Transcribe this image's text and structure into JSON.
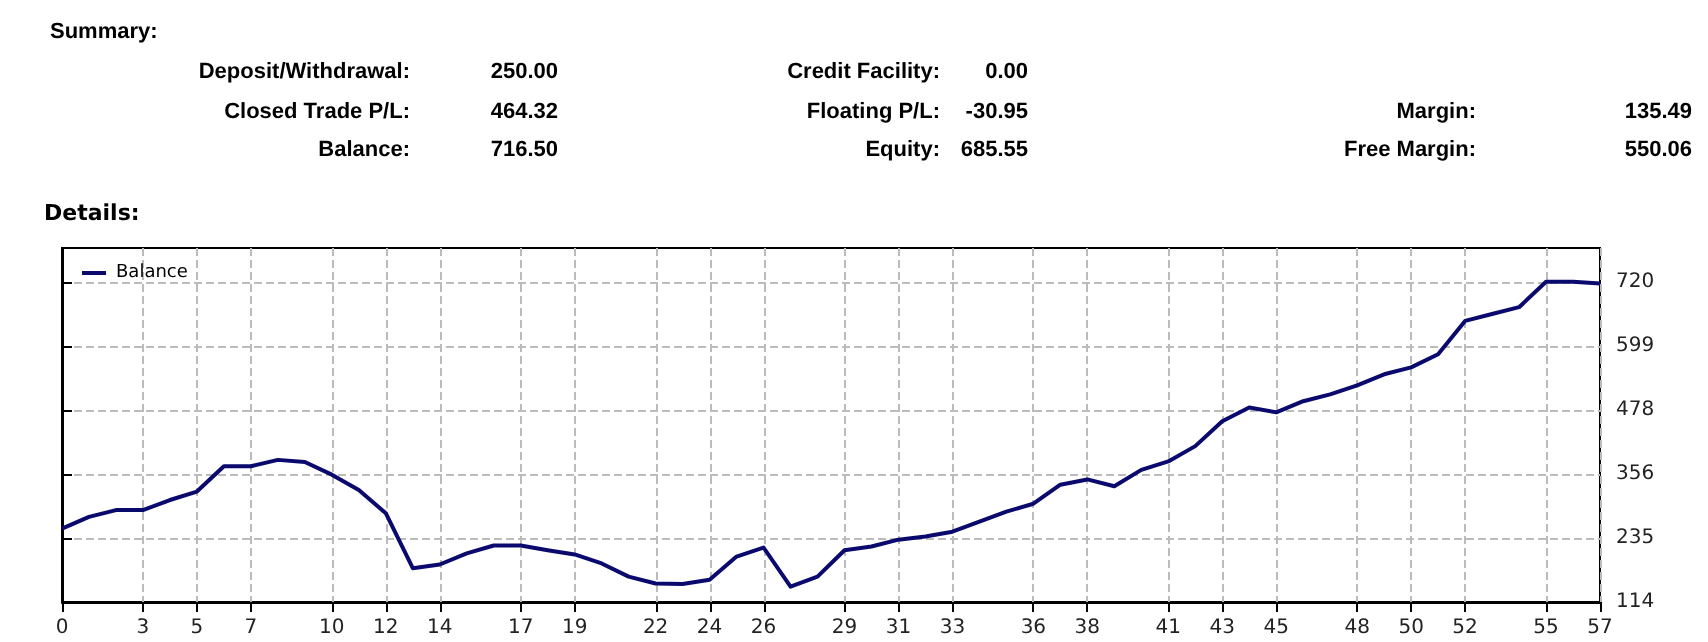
{
  "chart_data": [
    {
      "type": "other",
      "title": "Summary:",
      "annotations": [
        "Deposit/Withdrawal:",
        "250.00",
        "Closed Trade P/L:",
        "464.32",
        "Balance:",
        "716.50",
        "Credit Facility:",
        "0.00",
        "Floating P/L:",
        "-30.95",
        "Equity:",
        "685.55",
        "Margin:",
        "135.49",
        "Free Margin:",
        "550.06"
      ]
    },
    {
      "type": "line",
      "title": "Details:",
      "x": [
        0,
        1,
        2,
        3,
        4,
        5,
        6,
        7,
        8,
        9,
        10,
        11,
        12,
        13,
        14,
        15,
        16,
        17,
        18,
        19,
        20,
        21,
        22,
        23,
        24,
        25,
        26,
        27,
        28,
        29,
        30,
        31,
        32,
        33,
        34,
        35,
        36,
        37,
        38,
        39,
        40,
        41,
        42,
        43,
        44,
        45,
        46,
        47,
        48,
        49,
        50,
        51,
        52,
        53,
        54,
        55,
        56,
        57
      ],
      "series": [
        {
          "name": "Balance",
          "color": "#0a0a6e",
          "values": [
            253,
            275,
            288,
            288,
            307,
            323,
            371,
            371,
            383,
            379,
            355,
            326,
            282,
            178,
            185,
            206,
            221,
            221,
            212,
            204,
            187,
            162,
            149,
            148,
            156,
            200,
            217,
            143,
            162,
            212,
            219,
            232,
            238,
            247,
            266,
            285,
            300,
            336,
            346,
            333,
            364,
            380,
            409,
            456,
            482,
            473,
            494,
            507,
            524,
            545,
            558,
            583,
            646,
            659,
            672,
            720,
            720,
            717
          ]
        }
      ],
      "xlim": [
        0,
        57
      ],
      "xticks": [
        0,
        3,
        5,
        7,
        10,
        12,
        14,
        17,
        19,
        22,
        24,
        26,
        29,
        31,
        33,
        36,
        38,
        41,
        43,
        45,
        48,
        50,
        52,
        55,
        57
      ],
      "ylim": [
        114,
        784
      ],
      "yticks": [
        114,
        235,
        356,
        478,
        599,
        720
      ],
      "grid": true,
      "legend": "top left",
      "marker": "none",
      "line_style": "solid"
    }
  ]
}
